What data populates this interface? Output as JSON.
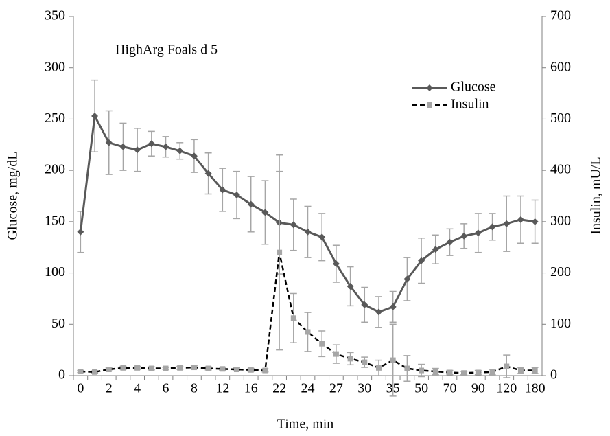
{
  "chart_data": {
    "type": "line",
    "annotation": "HighArg Foals d 5",
    "xlabel": "Time, min",
    "ylabel": "Glucose, mg/dL",
    "y2label": "Insulin, mU/L",
    "categories": [
      "0",
      null,
      "2",
      null,
      "4",
      null,
      "6",
      null,
      "8",
      null,
      "12",
      null,
      "16",
      null,
      "22",
      null,
      "24",
      null,
      "27",
      null,
      "30",
      null,
      "35",
      null,
      "50",
      null,
      "70",
      null,
      "90",
      null,
      "120",
      null,
      "180"
    ],
    "series": [
      {
        "name": "Glucose",
        "color": "#595959",
        "marker": "diamond",
        "dash": false,
        "values": [
          140,
          253,
          227,
          223,
          220,
          226,
          223,
          219,
          214,
          197,
          181,
          176,
          167,
          159,
          149,
          147,
          140,
          135,
          109,
          87,
          69,
          62,
          67,
          94,
          112,
          123,
          130,
          136,
          139,
          145,
          148,
          152,
          150
        ],
        "errors": [
          20,
          35,
          31,
          23,
          21,
          12,
          10,
          8,
          16,
          20,
          21,
          23,
          27,
          31,
          50,
          25,
          25,
          23,
          18,
          19,
          17,
          15,
          15,
          21,
          22,
          14,
          13,
          12,
          19,
          13,
          27,
          23,
          21
        ]
      },
      {
        "name": "Insulin",
        "color": "#000000",
        "marker_color": "#a6a6a6",
        "marker": "square",
        "dash": true,
        "axis": "y2",
        "values": [
          8,
          7,
          12,
          15,
          15,
          14,
          14,
          15,
          16,
          14,
          13,
          12,
          11,
          10,
          240,
          112,
          85,
          62,
          42,
          33,
          26,
          15,
          30,
          14,
          10,
          8,
          6,
          5,
          6,
          7,
          18,
          10,
          10
        ],
        "errors": [
          2,
          2,
          3,
          3,
          3,
          3,
          2,
          3,
          3,
          3,
          3,
          3,
          3,
          3,
          190,
          48,
          38,
          25,
          18,
          12,
          10,
          15,
          70,
          25,
          12,
          6,
          4,
          3,
          4,
          5,
          22,
          6,
          6
        ]
      }
    ],
    "error_color": "#a6a6a6",
    "ylim": [
      0,
      350
    ],
    "yticks": [
      0,
      50,
      100,
      150,
      200,
      250,
      300,
      350
    ],
    "y2lim": [
      0,
      700
    ],
    "y2ticks": [
      0,
      100,
      200,
      300,
      400,
      500,
      600,
      700
    ],
    "grid": false,
    "legend": "upper right"
  }
}
